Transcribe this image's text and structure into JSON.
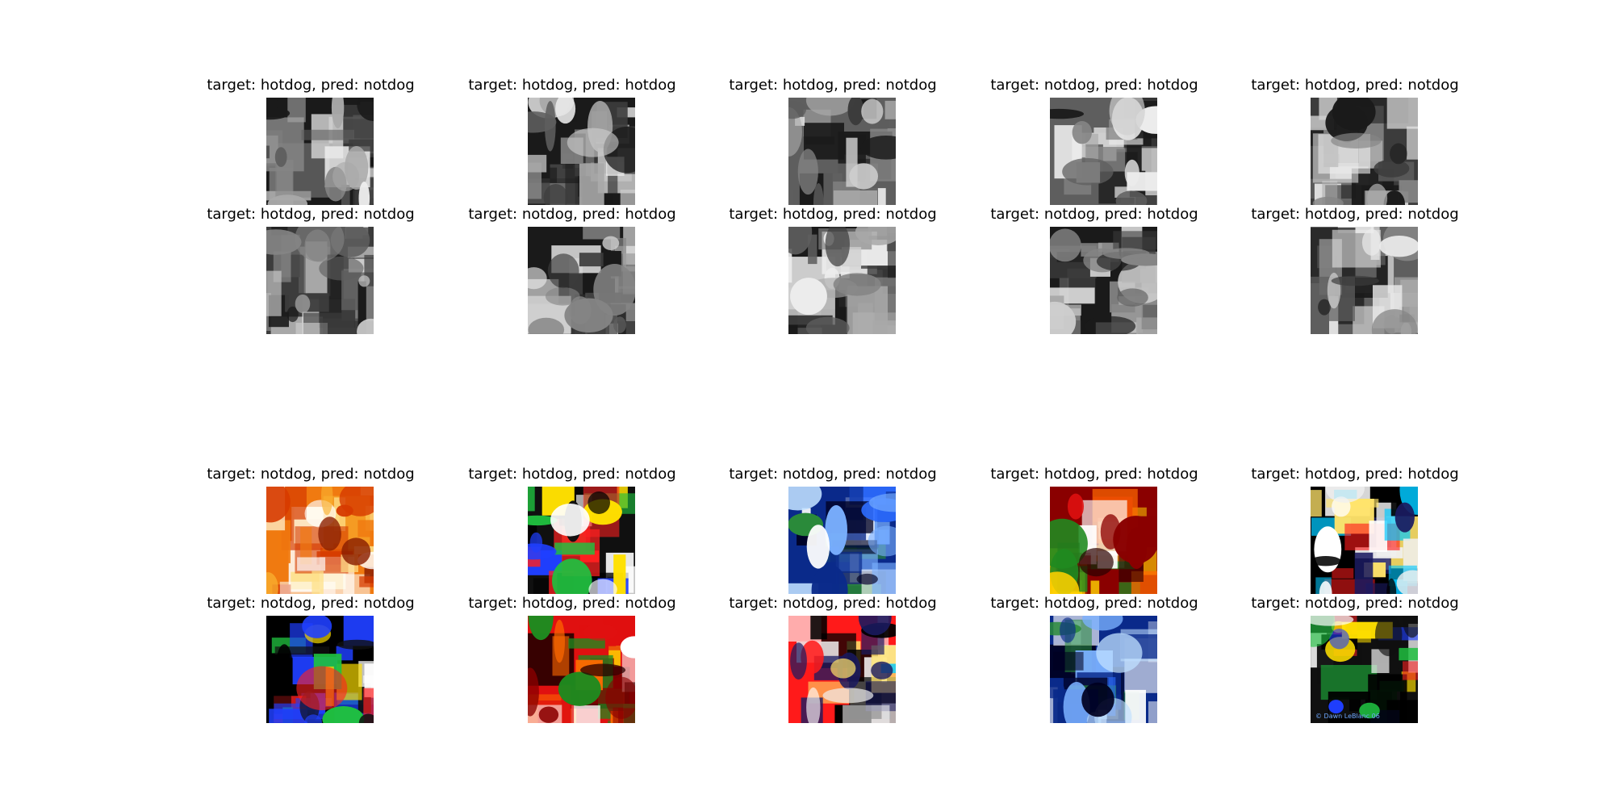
{
  "figure": {
    "background": "#ffffff",
    "panels": [
      {
        "name": "grayscale-panel",
        "cells": [
          {
            "title": "target: hotdog, pred: notdog",
            "image": "hand-with-grill-food-photo",
            "palette": "gray"
          },
          {
            "title": "target: hotdog, pred: hotdog",
            "image": "bun-on-plate-photo",
            "palette": "gray"
          },
          {
            "title": "target: hotdog, pred: notdog",
            "image": "franks-and-drink-sign-photo",
            "palette": "gray"
          },
          {
            "title": "target: notdog, pred: hotdog",
            "image": "man-eating-photo",
            "palette": "gray"
          },
          {
            "title": "target: hotdog, pred: notdog",
            "image": "hotdog-stand-photo",
            "palette": "gray"
          },
          {
            "title": "target: hotdog, pred: notdog",
            "image": "food-on-paper-photo",
            "palette": "gray"
          },
          {
            "title": "target: notdog, pred: hotdog",
            "image": "person-eating-photo",
            "palette": "gray"
          },
          {
            "title": "target: hotdog, pred: notdog",
            "image": "eating-contest-photo",
            "palette": "gray"
          },
          {
            "title": "target: notdog, pred: hotdog",
            "image": "food-tray-photo",
            "palette": "gray"
          },
          {
            "title": "target: hotdog, pred: notdog",
            "image": "man-with-hotdog-photo",
            "palette": "gray"
          }
        ]
      },
      {
        "name": "color-panel",
        "cells": [
          {
            "title": "target: notdog, pred: notdog",
            "image": "bread-basket-photo",
            "palette": "warm"
          },
          {
            "title": "target: hotdog, pred: notdog",
            "image": "night-street-person-photo",
            "palette": "dark"
          },
          {
            "title": "target: notdog, pred: notdog",
            "image": "crowd-photo",
            "palette": "cool"
          },
          {
            "title": "target: hotdog, pred: hotdog",
            "image": "chili-dog-photo",
            "palette": "red"
          },
          {
            "title": "target: hotdog, pred: hotdog",
            "image": "boy-with-plate-photo",
            "palette": "mixed"
          },
          {
            "title": "target: notdog, pred: notdog",
            "image": "group-portrait-photo",
            "palette": "dark"
          },
          {
            "title": "target: hotdog, pred: notdog",
            "image": "flowers-and-cat-photo",
            "palette": "red"
          },
          {
            "title": "target: notdog, pred: hotdog",
            "image": "woman-with-food-photo",
            "palette": "mixed"
          },
          {
            "title": "target: hotdog, pred: notdog",
            "image": "two-women-photo",
            "palette": "cool"
          },
          {
            "title": "target: notdog, pred: notdog",
            "image": "sleeping-dog-photo",
            "palette": "dark"
          }
        ]
      }
    ],
    "watermark": "© Dawn LeBlanc 06"
  }
}
